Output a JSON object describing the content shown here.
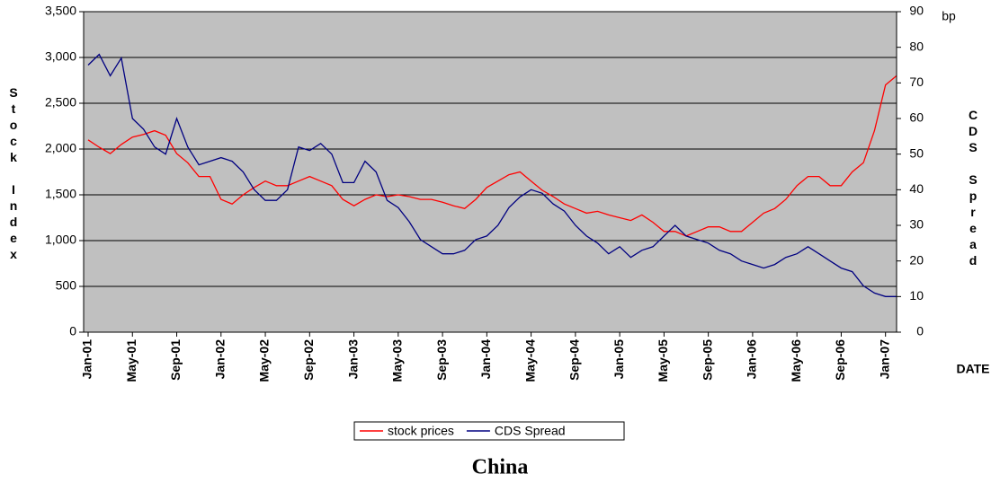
{
  "chart_data": {
    "type": "line",
    "title": "China",
    "y_label": "Stock Index",
    "y2_label": "CDS Spread",
    "y2_unit": "bp",
    "x_label": "DATE",
    "categories": [
      "Jan-01",
      null,
      null,
      null,
      "May-01",
      null,
      null,
      null,
      "Sep-01",
      null,
      null,
      null,
      "Jan-02",
      null,
      null,
      null,
      "May-02",
      null,
      null,
      null,
      "Sep-02",
      null,
      null,
      null,
      "Jan-03",
      null,
      null,
      null,
      "May-03",
      null,
      null,
      null,
      "Sep-03",
      null,
      null,
      null,
      "Jan-04",
      null,
      null,
      null,
      "May-04",
      null,
      null,
      null,
      "Sep-04",
      null,
      null,
      null,
      "Jan-05",
      null,
      null,
      null,
      "May-05",
      null,
      null,
      null,
      "Sep-05",
      null,
      null,
      null,
      "Jan-06",
      null,
      null,
      null,
      "May-06",
      null,
      null,
      null,
      "Sep-06",
      null,
      null,
      null,
      "Jan-07",
      null
    ],
    "series": [
      {
        "name": "stock prices",
        "color": "#ff0000",
        "axis": "y",
        "values": [
          2100,
          2020,
          1950,
          2050,
          2130,
          2160,
          2200,
          2150,
          1950,
          1850,
          1700,
          1700,
          1450,
          1400,
          1500,
          1580,
          1650,
          1600,
          1600,
          1650,
          1700,
          1650,
          1600,
          1450,
          1380,
          1450,
          1500,
          1480,
          1500,
          1480,
          1450,
          1450,
          1420,
          1380,
          1350,
          1450,
          1580,
          1650,
          1720,
          1750,
          1650,
          1550,
          1480,
          1400,
          1350,
          1300,
          1320,
          1280,
          1250,
          1220,
          1280,
          1200,
          1100,
          1100,
          1050,
          1100,
          1150,
          1150,
          1100,
          1100,
          1200,
          1300,
          1350,
          1450,
          1600,
          1700,
          1700,
          1600,
          1600,
          1750,
          1850,
          2200,
          2700,
          2800
        ]
      },
      {
        "name": "CDS Spread",
        "color": "#000080",
        "axis": "y2",
        "values": [
          75,
          78,
          72,
          77,
          60,
          57,
          52,
          50,
          60,
          52,
          47,
          48,
          49,
          48,
          45,
          40,
          37,
          37,
          40,
          52,
          51,
          53,
          50,
          42,
          42,
          48,
          45,
          37,
          35,
          31,
          26,
          24,
          22,
          22,
          23,
          26,
          27,
          30,
          35,
          38,
          40,
          39,
          36,
          34,
          30,
          27,
          25,
          22,
          24,
          21,
          23,
          24,
          27,
          30,
          27,
          26,
          25,
          23,
          22,
          20,
          19,
          18,
          19,
          21,
          22,
          24,
          22,
          20,
          18,
          17,
          13,
          11,
          10,
          10
        ]
      }
    ],
    "ylim": [
      0,
      3500
    ],
    "yticks": [
      0,
      500,
      {
        "value": 1000,
        "label": "1,000"
      },
      {
        "value": 1500,
        "label": "1,500"
      },
      {
        "value": 2000,
        "label": "2,000"
      },
      {
        "value": 2500,
        "label": "2,500"
      },
      {
        "value": 3000,
        "label": "3,000"
      },
      {
        "value": 3500,
        "label": "3,500"
      }
    ],
    "y2lim": [
      0,
      90
    ],
    "y2ticks": [
      0,
      10,
      20,
      30,
      40,
      50,
      60,
      70,
      80,
      90
    ],
    "grid": true,
    "plot_background": "#c0c0c0"
  }
}
